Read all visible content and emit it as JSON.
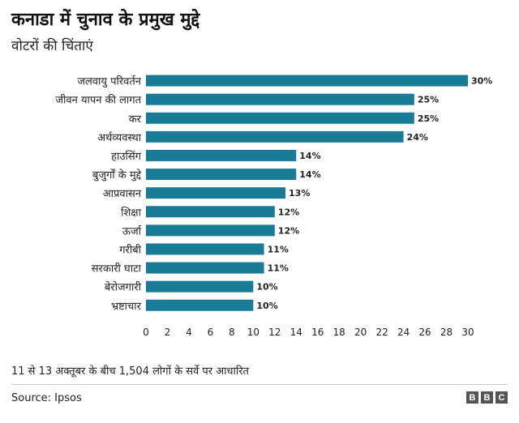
{
  "chart_data": {
    "type": "bar",
    "orientation": "horizontal",
    "title": "कनाडा में चुनाव के प्रमुख मुद्दे",
    "subtitle": "वोटरों की चिंताएं",
    "categories": [
      "जलवायु परिवर्तन",
      "जीवन यापन की लागत",
      "कर",
      "अर्थव्यवस्था",
      "हाउसिंग",
      "बुजुर्गों के मुद्दे",
      "आप्रवासन",
      "शिक्षा",
      "ऊर्जा",
      "गरीबी",
      "सरकारी घाटा",
      "बेरोजगारी",
      "भ्रष्टाचार"
    ],
    "values": [
      30,
      25,
      25,
      24,
      14,
      14,
      13,
      12,
      12,
      11,
      11,
      10,
      10
    ],
    "value_labels": [
      "30%",
      "25%",
      "25%",
      "24%",
      "14%",
      "14%",
      "13%",
      "12%",
      "12%",
      "11%",
      "11%",
      "10%",
      "10%"
    ],
    "xticks": [
      0,
      2,
      4,
      6,
      8,
      10,
      12,
      14,
      16,
      18,
      20,
      22,
      24,
      26,
      28,
      30
    ],
    "xlim": [
      0,
      30
    ],
    "bar_color": "#1a7b96",
    "grid": false
  },
  "footer": {
    "note": "11 से 13 अक्तूबर के बीच 1,504 लोगों के सर्वे पर आधारित",
    "source": "Source:  Ipsos",
    "logo": [
      "B",
      "B",
      "C"
    ]
  }
}
